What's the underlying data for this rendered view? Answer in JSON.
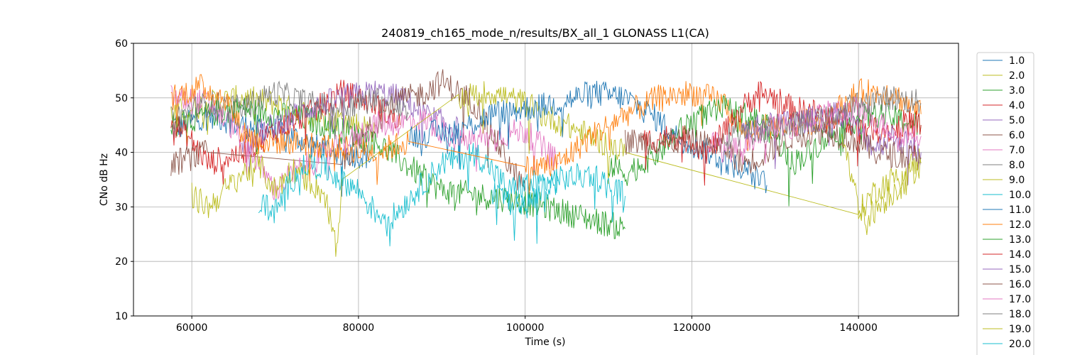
{
  "chart_data": {
    "type": "line",
    "title": "240819_ch165_mode_n/results/BX_all_1 GLONASS L1(CA)",
    "xlabel": "Time (s)",
    "ylabel": "CNo dB Hz",
    "xlim": [
      53000,
      152000
    ],
    "ylim": [
      10,
      60
    ],
    "xticks": [
      60000,
      80000,
      100000,
      120000,
      140000
    ],
    "yticks": [
      10,
      20,
      30,
      40,
      50,
      60
    ],
    "grid": true,
    "legend_position": "right-outside",
    "series": [
      {
        "name": "1.0",
        "color": "#1f77b4",
        "points": [
          [
            57500,
            44
          ],
          [
            62000,
            47
          ],
          [
            66000,
            45
          ],
          [
            70000,
            44
          ],
          [
            72000,
            43
          ],
          [
            75000,
            41
          ],
          [
            78000,
            40
          ],
          [
            82000,
            39
          ]
        ]
      },
      {
        "name": "2.0",
        "color": "#bcbd22",
        "points": [
          [
            57500,
            47
          ],
          [
            62000,
            49
          ],
          [
            66000,
            50
          ],
          [
            70000,
            49
          ],
          [
            74000,
            47
          ],
          [
            78000,
            46
          ],
          [
            82000,
            44
          ]
        ]
      },
      {
        "name": "3.0",
        "color": "#2ca02c",
        "points": [
          [
            57500,
            45
          ],
          [
            62000,
            47
          ],
          [
            66000,
            48
          ],
          [
            70000,
            47
          ],
          [
            74000,
            46
          ],
          [
            78000,
            44
          ],
          [
            82000,
            42
          ],
          [
            90000,
            33
          ],
          [
            100000,
            31
          ],
          [
            112000,
            26
          ]
        ]
      },
      {
        "name": "4.0",
        "color": "#d62728",
        "points": [
          [
            57500,
            46
          ],
          [
            60000,
            42
          ],
          [
            62000,
            38
          ],
          [
            66000,
            40
          ],
          [
            70000,
            44
          ],
          [
            74000,
            47
          ],
          [
            78000,
            51
          ],
          [
            82000,
            49
          ],
          [
            85000,
            45
          ]
        ]
      },
      {
        "name": "5.0",
        "color": "#9467bd",
        "points": [
          [
            66000,
            42
          ],
          [
            70000,
            45
          ],
          [
            74000,
            48
          ],
          [
            78000,
            50
          ],
          [
            82000,
            51
          ],
          [
            85000,
            50
          ],
          [
            88000,
            47
          ],
          [
            92000,
            44
          ]
        ]
      },
      {
        "name": "6.0",
        "color": "#8c564b",
        "points": [
          [
            57500,
            38
          ],
          [
            62000,
            40
          ],
          [
            78000,
            38
          ],
          [
            84000,
            49
          ],
          [
            88000,
            51
          ],
          [
            90000,
            53
          ],
          [
            94000,
            49
          ],
          [
            98000,
            38
          ],
          [
            100000,
            33
          ]
        ]
      },
      {
        "name": "7.0",
        "color": "#e377c2",
        "points": [
          [
            57500,
            50
          ],
          [
            62000,
            49
          ],
          [
            64000,
            46
          ],
          [
            66000,
            43
          ],
          [
            68000,
            38
          ],
          [
            70000,
            33
          ],
          [
            72000,
            36
          ],
          [
            82000,
            45
          ],
          [
            88000,
            46
          ],
          [
            92000,
            42
          ],
          [
            100000,
            44
          ],
          [
            104000,
            38
          ]
        ]
      },
      {
        "name": "8.0",
        "color": "#7f7f7f",
        "points": [
          [
            57500,
            46
          ],
          [
            62000,
            49
          ],
          [
            66000,
            48
          ],
          [
            70000,
            51
          ],
          [
            74000,
            49
          ],
          [
            78000,
            48
          ],
          [
            82000,
            50
          ],
          [
            86000,
            47
          ]
        ]
      },
      {
        "name": "9.0",
        "color": "#bcbd22",
        "points": [
          [
            60000,
            32
          ],
          [
            62000,
            30
          ],
          [
            64000,
            33
          ],
          [
            66000,
            36
          ],
          [
            68000,
            38
          ],
          [
            70000,
            33
          ],
          [
            72000,
            37
          ],
          [
            74000,
            35
          ],
          [
            76000,
            32
          ],
          [
            77500,
            21
          ],
          [
            78000,
            35
          ],
          [
            92000,
            50
          ],
          [
            96000,
            51
          ],
          [
            100000,
            49
          ],
          [
            102000,
            47
          ],
          [
            112000,
            40
          ],
          [
            140000,
            29
          ],
          [
            142000,
            33
          ],
          [
            145000,
            36
          ],
          [
            147500,
            39
          ]
        ]
      },
      {
        "name": "10.0",
        "color": "#17becf",
        "points": [
          [
            68000,
            31
          ],
          [
            70000,
            29
          ],
          [
            72000,
            35
          ],
          [
            74000,
            38
          ],
          [
            76000,
            37
          ],
          [
            78000,
            35
          ],
          [
            80000,
            33
          ],
          [
            82000,
            29
          ],
          [
            84000,
            28
          ],
          [
            90000,
            38
          ],
          [
            94000,
            40
          ],
          [
            96000,
            37
          ],
          [
            98000,
            33
          ],
          [
            100000,
            34
          ],
          [
            104000,
            35
          ],
          [
            108000,
            36
          ],
          [
            112000,
            32
          ]
        ]
      },
      {
        "name": "11.0",
        "color": "#1f77b4",
        "points": [
          [
            86000,
            43
          ],
          [
            92000,
            44
          ],
          [
            96000,
            47
          ],
          [
            100000,
            48
          ],
          [
            104000,
            49
          ],
          [
            108000,
            51
          ],
          [
            112000,
            50
          ],
          [
            116000,
            46
          ],
          [
            118000,
            43
          ],
          [
            122000,
            40
          ],
          [
            126000,
            37
          ],
          [
            129000,
            34
          ]
        ]
      },
      {
        "name": "12.0",
        "color": "#ff7f0e",
        "points": [
          [
            57500,
            50
          ],
          [
            61000,
            52
          ],
          [
            64000,
            50
          ],
          [
            66000,
            44
          ],
          [
            68000,
            42
          ],
          [
            72000,
            42
          ],
          [
            82000,
            40
          ],
          [
            86000,
            42
          ],
          [
            100000,
            37
          ],
          [
            104000,
            38
          ],
          [
            108000,
            43
          ],
          [
            112000,
            47
          ],
          [
            116000,
            50
          ],
          [
            120000,
            51
          ],
          [
            124000,
            49
          ],
          [
            126000,
            44
          ],
          [
            136000,
            46
          ],
          [
            140000,
            51
          ],
          [
            144000,
            51
          ],
          [
            147500,
            47
          ]
        ]
      },
      {
        "name": "13.0",
        "color": "#2ca02c",
        "points": [
          [
            110000,
            38
          ],
          [
            112000,
            36
          ],
          [
            116000,
            40
          ],
          [
            120000,
            46
          ],
          [
            124000,
            48
          ],
          [
            128000,
            46
          ],
          [
            130000,
            43
          ],
          [
            132000,
            38
          ],
          [
            134000,
            40
          ],
          [
            138000,
            45
          ],
          [
            142000,
            47
          ],
          [
            147500,
            45
          ]
        ]
      },
      {
        "name": "14.0",
        "color": "#d62728",
        "points": [
          [
            114000,
            42
          ],
          [
            118000,
            43
          ],
          [
            120000,
            42
          ],
          [
            122000,
            40
          ],
          [
            124000,
            44
          ],
          [
            126000,
            48
          ],
          [
            128000,
            51
          ],
          [
            130000,
            50
          ],
          [
            132000,
            48
          ],
          [
            136000,
            47
          ],
          [
            140000,
            45
          ],
          [
            144000,
            44
          ],
          [
            146000,
            46
          ],
          [
            147500,
            45
          ]
        ]
      },
      {
        "name": "15.0",
        "color": "#9467bd",
        "points": [
          [
            126000,
            44
          ],
          [
            130000,
            45
          ],
          [
            134000,
            46
          ],
          [
            138000,
            47
          ],
          [
            140000,
            44
          ],
          [
            142000,
            41
          ],
          [
            144000,
            43
          ],
          [
            147500,
            40
          ]
        ]
      },
      {
        "name": "16.0",
        "color": "#8c564b",
        "points": [
          [
            112000,
            42
          ],
          [
            120000,
            42
          ],
          [
            124000,
            41
          ],
          [
            126000,
            38
          ],
          [
            128000,
            39
          ],
          [
            132000,
            43
          ],
          [
            136000,
            44
          ],
          [
            140000,
            42
          ],
          [
            142000,
            40
          ],
          [
            147500,
            39
          ]
        ]
      },
      {
        "name": "17.0",
        "color": "#e377c2",
        "points": [
          [
            122000,
            42
          ],
          [
            126000,
            40
          ],
          [
            128000,
            44
          ],
          [
            132000,
            45
          ],
          [
            136000,
            47
          ],
          [
            140000,
            48
          ],
          [
            144000,
            44
          ],
          [
            147500,
            43
          ]
        ]
      },
      {
        "name": "18.0",
        "color": "#7f7f7f",
        "points": [
          [
            124000,
            43
          ],
          [
            128000,
            44
          ],
          [
            132000,
            45
          ],
          [
            136000,
            46
          ],
          [
            140000,
            49
          ],
          [
            144000,
            50
          ],
          [
            147500,
            49
          ]
        ]
      },
      {
        "name": "19.0",
        "color": "#bcbd22",
        "points": [
          [
            138000,
            44
          ],
          [
            140000,
            30
          ],
          [
            141000,
            28
          ],
          [
            143000,
            31
          ],
          [
            145000,
            34
          ],
          [
            147500,
            38
          ]
        ]
      },
      {
        "name": "20.0",
        "color": "#17becf",
        "points": [
          [
            96000,
            33
          ],
          [
            98000,
            31
          ],
          [
            100000,
            30
          ],
          [
            102000,
            33
          ],
          [
            104000,
            35
          ]
        ]
      }
    ]
  }
}
